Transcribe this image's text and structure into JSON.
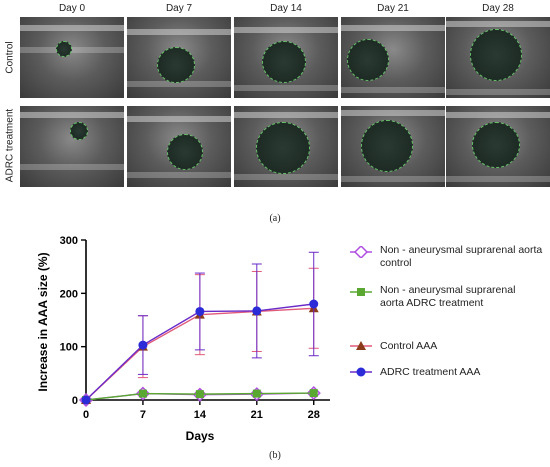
{
  "panel_a": {
    "columns": [
      "Day 0",
      "Day 7",
      "Day 14",
      "Day 21",
      "Day 28"
    ],
    "rows": [
      "Control",
      "ADRC treatment"
    ],
    "caption": "(a)"
  },
  "panel_b": {
    "caption": "(b)"
  },
  "chart_data": {
    "type": "line",
    "title": "",
    "xlabel": "Days",
    "ylabel": "Increase in AAA size (%)",
    "x": [
      0,
      7,
      14,
      21,
      28
    ],
    "xticks": [
      "0",
      "7",
      "14",
      "21",
      "28"
    ],
    "yticks": [
      "0",
      "100",
      "200",
      "300"
    ],
    "xlim": [
      0,
      30
    ],
    "ylim": [
      0,
      300
    ],
    "legend_position": "right",
    "series": [
      {
        "name": "Non - aneurysmal suprarenal aorta control",
        "values": [
          0,
          12,
          10,
          11,
          13
        ],
        "color": "#b04ee0",
        "marker": "diamond"
      },
      {
        "name": "Non - aneurysmal suprarenal aorta ADRC treatment",
        "values": [
          0,
          12,
          11,
          12,
          13
        ],
        "color": "#5aa832",
        "marker": "square"
      },
      {
        "name": "Control AAA",
        "values": [
          0,
          100,
          160,
          166,
          172
        ],
        "error": [
          0,
          58,
          75,
          75,
          75
        ],
        "color": "#8b3b1a",
        "errcolor": "#e05a7a",
        "marker": "triangle"
      },
      {
        "name": "ADRC treatment AAA",
        "values": [
          0,
          103,
          166,
          167,
          180
        ],
        "error": [
          0,
          55,
          72,
          88,
          97
        ],
        "color": "#2b2bd8",
        "errcolor": "#6a2bc8",
        "marker": "circle"
      }
    ]
  }
}
